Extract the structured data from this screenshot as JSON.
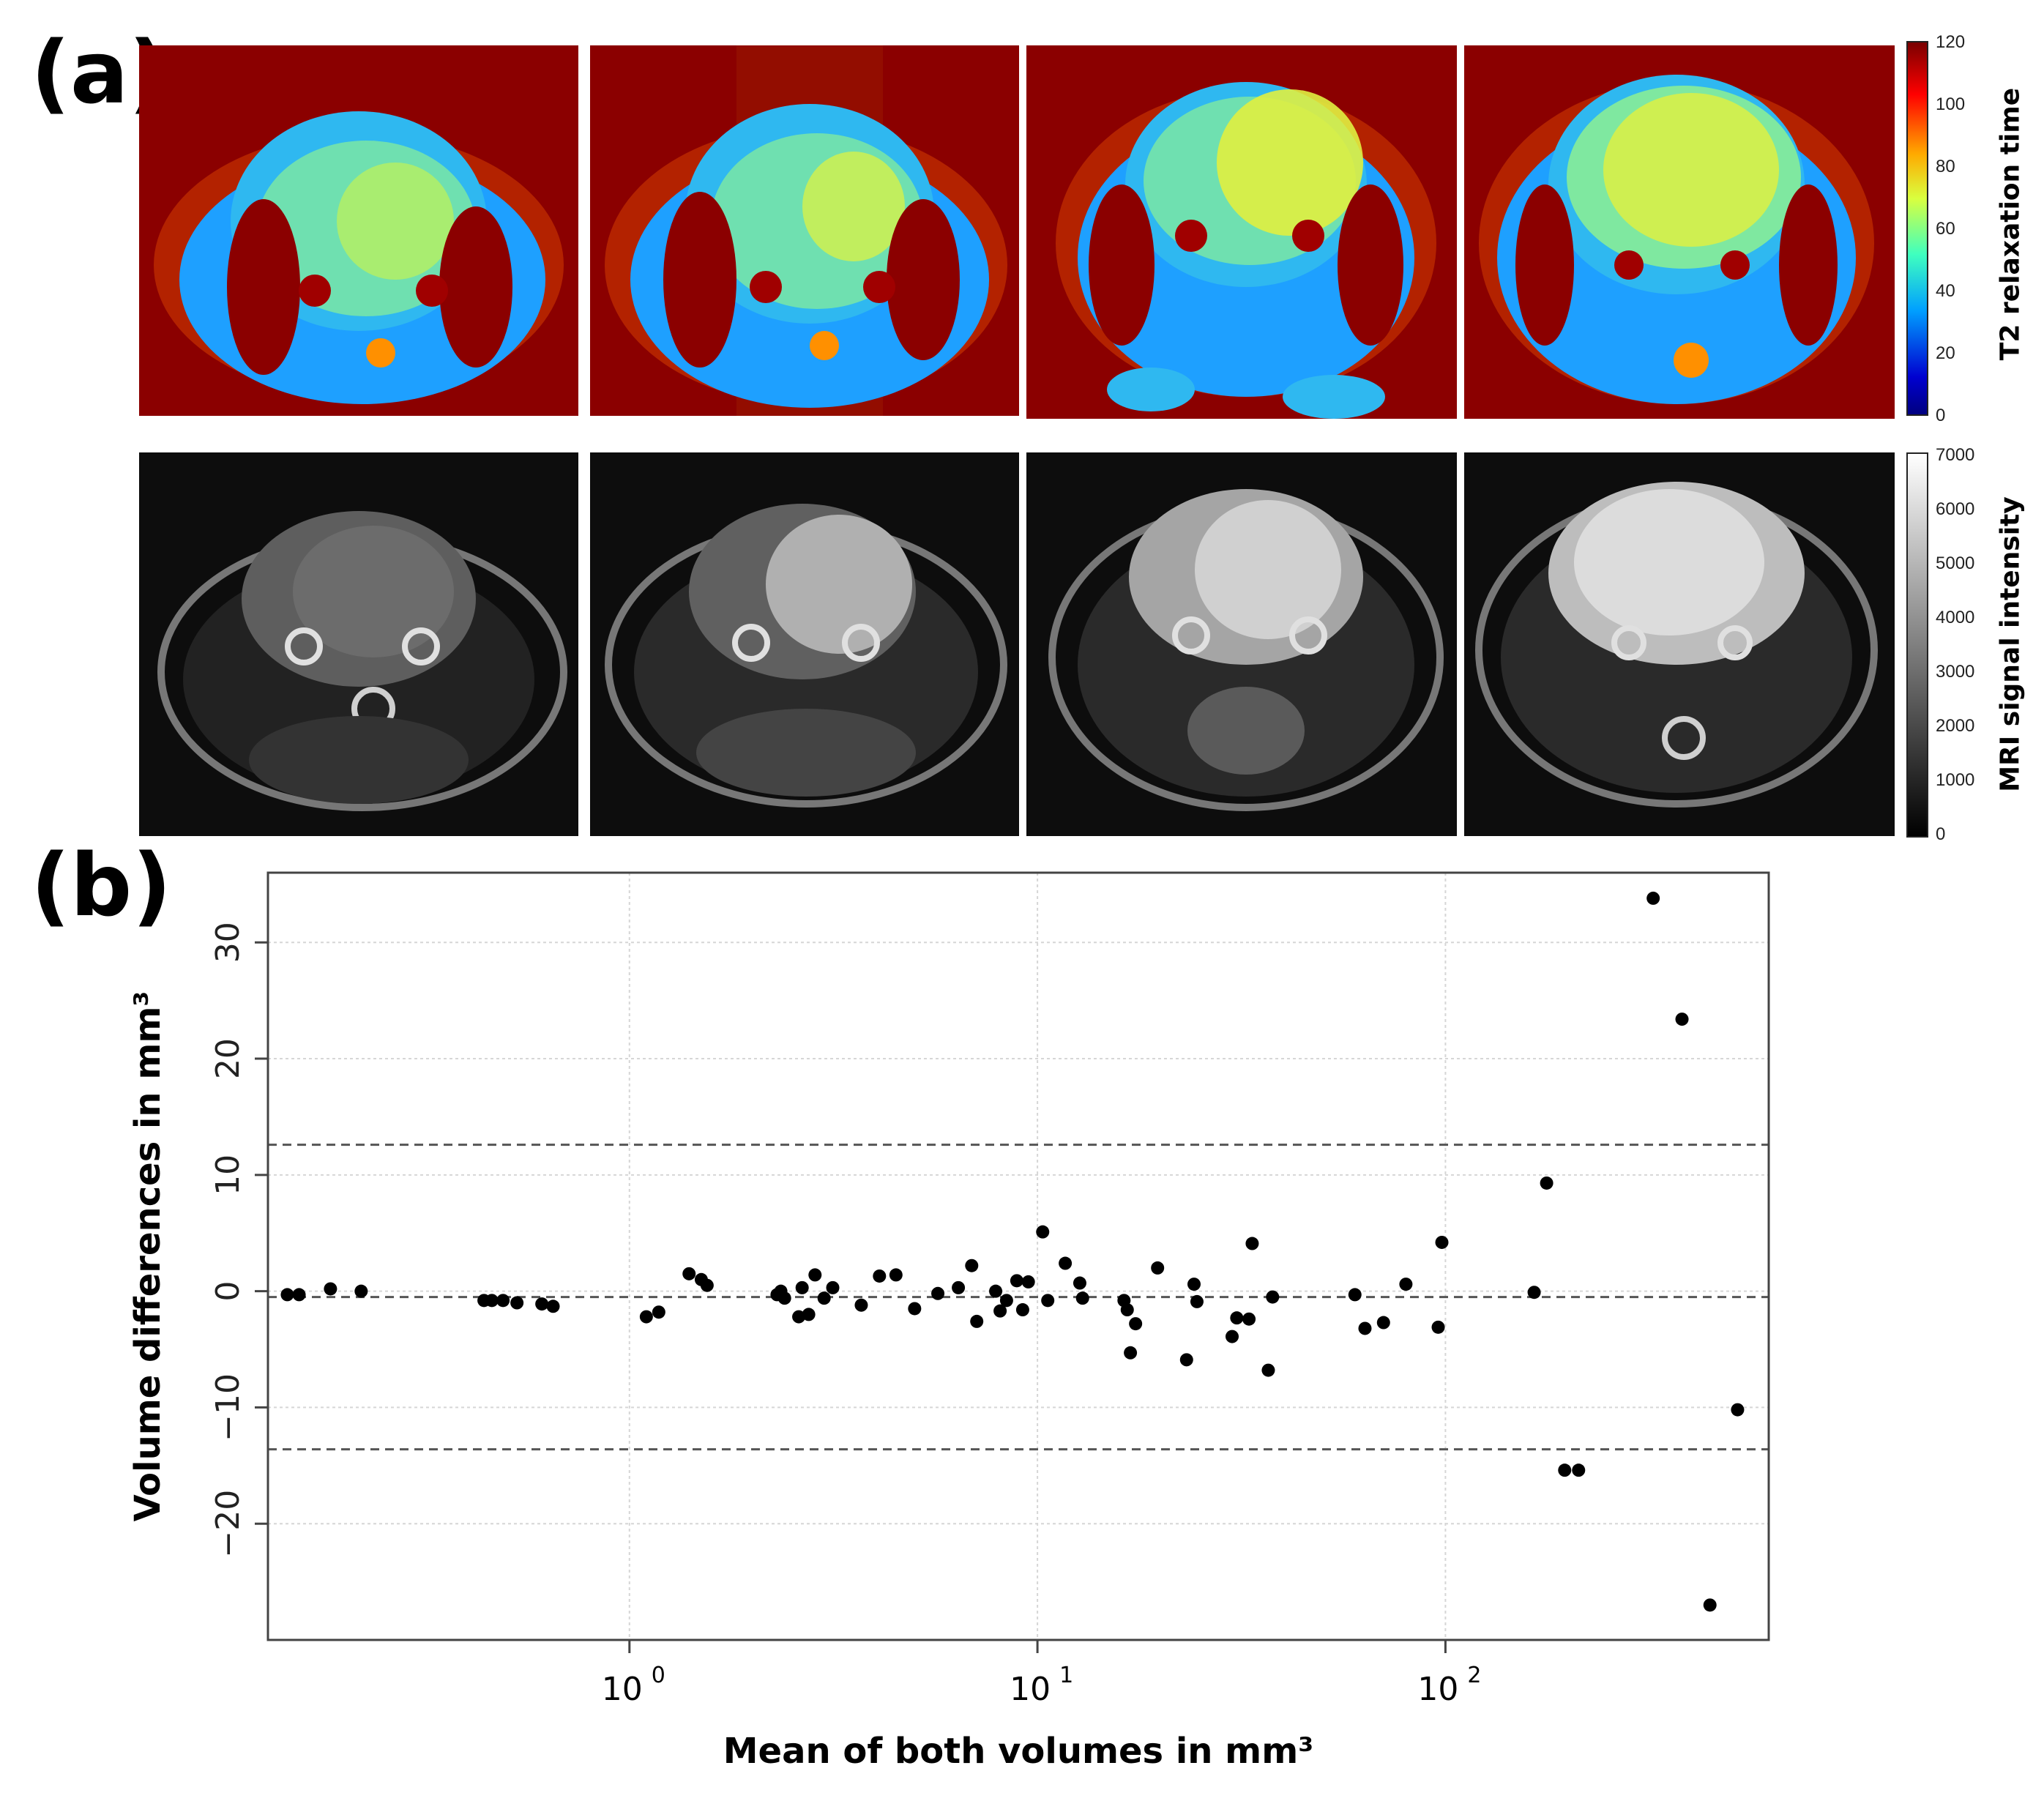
{
  "figure": {
    "panel_a_label": "(a)",
    "panel_b_label": "(b)"
  },
  "panel_a": {
    "t2_colorbar": {
      "title": "T2 relaxation time",
      "ticks": [
        "120",
        "100",
        "80",
        "60",
        "40",
        "20",
        "0"
      ],
      "colormap": [
        "#7a0000",
        "#ff0000",
        "#ffaa00",
        "#d9ff3f",
        "#3fffbf",
        "#00a0ff",
        "#0000d0",
        "#000080"
      ]
    },
    "mri_colorbar": {
      "title": "MRI signal intensity",
      "ticks": [
        "7000",
        "6000",
        "5000",
        "4000",
        "3000",
        "2000",
        "1000",
        "0"
      ],
      "colormap": [
        "#ffffff",
        "#000000"
      ]
    },
    "t2_background_color": "#8b0000",
    "mri_background_color": "#0d0d0d"
  },
  "chart_data": {
    "type": "scatter",
    "xlabel": "Mean of both volumes in mm³",
    "ylabel": "Volume differences in mm³",
    "x_scale": "log",
    "xlim": [
      0.13,
      620
    ],
    "ylim": [
      -30,
      36
    ],
    "x_tick_labels": [
      "10",
      "10",
      "10"
    ],
    "x_tick_exponents": [
      "0",
      "1",
      "2"
    ],
    "x_tick_values": [
      1,
      10,
      100
    ],
    "y_tick_labels": [
      "30",
      "20",
      "10",
      "0",
      "−10",
      "−20"
    ],
    "y_tick_values": [
      30,
      20,
      10,
      0,
      -10,
      -20
    ],
    "reference_lines": [
      12.6,
      -0.5,
      -13.6
    ],
    "grid": true,
    "points": [
      [
        0.145,
        -0.3
      ],
      [
        0.155,
        -0.3
      ],
      [
        0.185,
        0.2
      ],
      [
        0.22,
        0.0
      ],
      [
        0.44,
        -0.8
      ],
      [
        0.46,
        -0.8
      ],
      [
        0.49,
        -0.8
      ],
      [
        0.53,
        -1.0
      ],
      [
        0.61,
        -1.1
      ],
      [
        0.65,
        -1.3
      ],
      [
        1.1,
        -2.2
      ],
      [
        1.18,
        -1.8
      ],
      [
        1.4,
        1.5
      ],
      [
        1.5,
        1.0
      ],
      [
        1.55,
        0.5
      ],
      [
        2.3,
        -0.3
      ],
      [
        2.35,
        0.0
      ],
      [
        2.4,
        -0.6
      ],
      [
        2.6,
        -2.2
      ],
      [
        2.65,
        0.3
      ],
      [
        2.75,
        -2.0
      ],
      [
        2.85,
        1.4
      ],
      [
        3.0,
        -0.6
      ],
      [
        3.15,
        0.3
      ],
      [
        3.7,
        -1.2
      ],
      [
        4.1,
        1.3
      ],
      [
        4.5,
        1.4
      ],
      [
        5.0,
        -1.5
      ],
      [
        5.7,
        -0.2
      ],
      [
        6.4,
        0.3
      ],
      [
        6.9,
        2.2
      ],
      [
        7.1,
        -2.6
      ],
      [
        7.9,
        0.0
      ],
      [
        8.1,
        -1.7
      ],
      [
        8.4,
        -0.8
      ],
      [
        8.9,
        0.9
      ],
      [
        9.2,
        -1.6
      ],
      [
        9.5,
        0.8
      ],
      [
        10.3,
        5.1
      ],
      [
        10.6,
        -0.8
      ],
      [
        11.7,
        2.4
      ],
      [
        12.7,
        0.7
      ],
      [
        12.9,
        -0.6
      ],
      [
        16.3,
        -0.8
      ],
      [
        16.6,
        -1.6
      ],
      [
        16.9,
        -5.3
      ],
      [
        17.4,
        -2.8
      ],
      [
        19.7,
        2.0
      ],
      [
        23.2,
        -5.9
      ],
      [
        24.2,
        0.6
      ],
      [
        24.6,
        -0.9
      ],
      [
        30.0,
        -3.9
      ],
      [
        30.8,
        -2.3
      ],
      [
        33.0,
        -2.4
      ],
      [
        33.6,
        4.1
      ],
      [
        36.8,
        -6.8
      ],
      [
        37.7,
        -0.5
      ],
      [
        60.0,
        -0.3
      ],
      [
        63.5,
        -3.2
      ],
      [
        70.5,
        -2.7
      ],
      [
        80.0,
        0.6
      ],
      [
        96.0,
        -3.1
      ],
      [
        98.0,
        4.2
      ],
      [
        165.0,
        -0.1
      ],
      [
        177.0,
        9.3
      ],
      [
        196.0,
        -15.4
      ],
      [
        212.0,
        -15.4
      ],
      [
        323.0,
        33.8
      ],
      [
        380.0,
        23.4
      ],
      [
        445.0,
        -27.0
      ],
      [
        520.0,
        -10.2
      ]
    ]
  }
}
